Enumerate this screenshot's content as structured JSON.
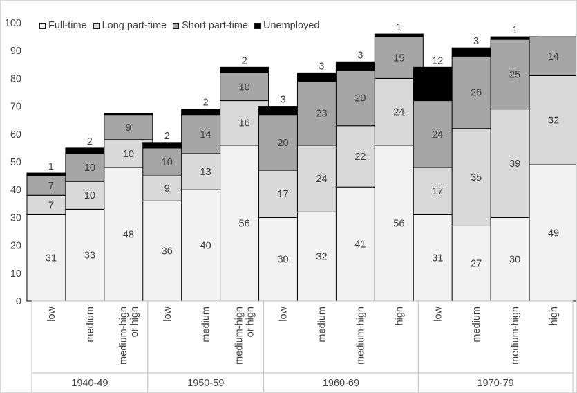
{
  "chart_data": {
    "type": "bar",
    "stacked": true,
    "legend_position": "top-left",
    "grid": false,
    "ylim": [
      0,
      100
    ],
    "y_ticks": [
      0,
      10,
      20,
      30,
      40,
      50,
      60,
      70,
      80,
      90,
      100
    ],
    "groups": [
      {
        "label": "1940-49",
        "categories": [
          "low",
          "medium",
          "medium-high or high"
        ]
      },
      {
        "label": "1950-59",
        "categories": [
          "low",
          "medium",
          "medium-high or high"
        ]
      },
      {
        "label": "1960-69",
        "categories": [
          "low",
          "medium",
          "medium-high",
          "high"
        ]
      },
      {
        "label": "1970-79",
        "categories": [
          "low",
          "medium",
          "medium-high",
          "high"
        ]
      }
    ],
    "categories": [
      "low",
      "medium",
      "medium-high or high",
      "low",
      "medium",
      "medium-high or high",
      "low",
      "medium",
      "medium-high",
      "high",
      "low",
      "medium",
      "medium-high",
      "high"
    ],
    "series": [
      {
        "name": "Full-time",
        "color": "#f2f2f2",
        "values": [
          31,
          33,
          48,
          36,
          40,
          56,
          30,
          32,
          41,
          56,
          31,
          27,
          30,
          49
        ]
      },
      {
        "name": "Long part-time",
        "color": "#d9d9d9",
        "values": [
          7,
          10,
          10,
          9,
          13,
          16,
          17,
          24,
          22,
          24,
          17,
          35,
          39,
          32
        ]
      },
      {
        "name": "Short part-time",
        "color": "#a6a6a6",
        "values": [
          7,
          10,
          9,
          10,
          14,
          10,
          20,
          23,
          20,
          15,
          24,
          26,
          25,
          14
        ]
      },
      {
        "name": "Unemployed",
        "color": "#000000",
        "values": [
          1,
          2,
          0.5,
          2,
          2,
          2,
          3,
          3,
          3,
          1,
          12,
          3,
          1,
          0
        ]
      }
    ],
    "data_labels": [
      [
        "31",
        "7",
        "7",
        "1"
      ],
      [
        "33",
        "10",
        "10",
        "2"
      ],
      [
        "48",
        "10",
        "9",
        ""
      ],
      [
        "36",
        "9",
        "10",
        "2"
      ],
      [
        "40",
        "13",
        "14",
        "2"
      ],
      [
        "56",
        "16",
        "10",
        "2"
      ],
      [
        "30",
        "17",
        "20",
        "3"
      ],
      [
        "32",
        "24",
        "23",
        "3"
      ],
      [
        "41",
        "22",
        "20",
        "3"
      ],
      [
        "56",
        "24",
        "15",
        "1"
      ],
      [
        "31",
        "17",
        "24",
        "12"
      ],
      [
        "27",
        "35",
        "26",
        "3"
      ],
      [
        "30",
        "39",
        "25",
        "1"
      ],
      [
        "49",
        "32",
        "14",
        ""
      ]
    ]
  }
}
